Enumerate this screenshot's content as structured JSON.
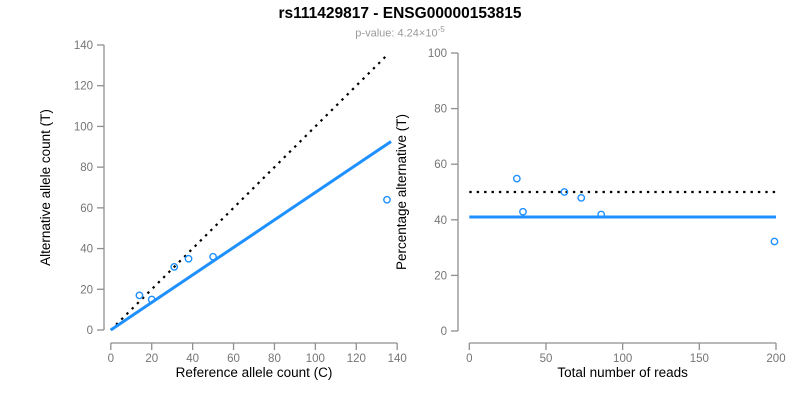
{
  "header": {
    "title": "rs111429817 - ENSG00000153815",
    "pvalue_prefix": "p-value: 4.24×10",
    "pvalue_exponent": "-5"
  },
  "colors": {
    "accent_blue": "#1E90FF",
    "line_black": "#000000",
    "axis_gray": "#8f8f8f",
    "tick_label_gray": "#757575",
    "axis_title_black": "#000000",
    "subtitle_gray": "#9a9a9a",
    "background": "#ffffff"
  },
  "chart_data": [
    {
      "type": "scatter",
      "name": "allele-counts-plot",
      "xlabel": "Reference allele count (C)",
      "ylabel": "Alternative allele count (T)",
      "xlim": [
        0,
        140
      ],
      "ylim": [
        0,
        140
      ],
      "xticks": [
        0,
        20,
        40,
        60,
        80,
        100,
        120,
        140
      ],
      "yticks": [
        0,
        20,
        40,
        60,
        80,
        100,
        120,
        140
      ],
      "grid": false,
      "points": [
        [
          14,
          17
        ],
        [
          20,
          15
        ],
        [
          31,
          31
        ],
        [
          38,
          35
        ],
        [
          50,
          36
        ],
        [
          135,
          64
        ]
      ],
      "lines": [
        {
          "name": "identity-line",
          "style": "dotted",
          "color": "#000000",
          "x1": 0,
          "y1": 0,
          "x2": 135.5,
          "y2": 135.5
        },
        {
          "name": "fit-line",
          "style": "solid",
          "color": "#1E90FF",
          "x1": 0,
          "y1": 0,
          "x2": 137,
          "y2": 92.6
        }
      ]
    },
    {
      "type": "scatter",
      "name": "percentage-alternative-plot",
      "xlabel": "Total number of reads",
      "ylabel": "Percentage alternative (T)",
      "xlim": [
        0,
        200
      ],
      "ylim": [
        0,
        100
      ],
      "xticks": [
        0,
        50,
        100,
        150,
        200
      ],
      "yticks": [
        0,
        20,
        40,
        60,
        80,
        100
      ],
      "grid": false,
      "points": [
        [
          31,
          54.8
        ],
        [
          35,
          42.9
        ],
        [
          62,
          50.0
        ],
        [
          73,
          47.9
        ],
        [
          86,
          41.9
        ],
        [
          199,
          32.2
        ]
      ],
      "lines": [
        {
          "name": "fifty-percent-line",
          "style": "dotted",
          "color": "#000000",
          "hline": 50
        },
        {
          "name": "estimated-percentage-line",
          "style": "solid",
          "color": "#1E90FF",
          "hline": 41
        }
      ]
    }
  ]
}
